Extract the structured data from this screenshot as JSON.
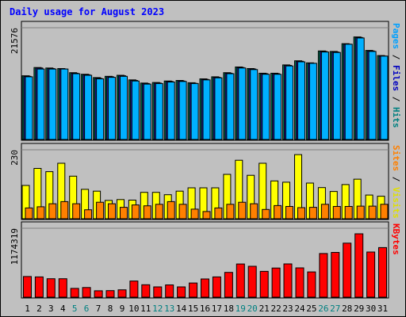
{
  "chart_data": {
    "type": "bar",
    "title": "Daily usage for August 2023",
    "categories": [
      "1",
      "2",
      "3",
      "4",
      "5",
      "6",
      "7",
      "8",
      "9",
      "10",
      "11",
      "12",
      "13",
      "14",
      "15",
      "16",
      "17",
      "18",
      "19",
      "20",
      "21",
      "22",
      "23",
      "24",
      "25",
      "26",
      "27",
      "28",
      "29",
      "30",
      "31"
    ],
    "weekend_days": [
      "5",
      "6",
      "12",
      "13",
      "19",
      "20",
      "26",
      "27"
    ],
    "panels": [
      {
        "id": "hits",
        "top_label": "21576",
        "ylim": [
          0,
          21576
        ],
        "right_labels": [
          {
            "text": "Pages",
            "color": "#00a0ff"
          },
          {
            "text": "Files",
            "color": "#0000c0"
          },
          {
            "text": "Hits",
            "color": "#008080"
          }
        ],
        "series": [
          {
            "name": "Hits",
            "color": "#00805c",
            "values": [
              12300,
              13900,
              13800,
              13700,
              12900,
              12600,
              11950,
              12200,
              12400,
              11500,
              10900,
              11000,
              11300,
              11400,
              10950,
              11700,
              12100,
              12900,
              14000,
              13700,
              12800,
              12800,
              14400,
              15200,
              14800,
              17100,
              17000,
              18500,
              19800,
              17200,
              16200
            ]
          },
          {
            "name": "Files",
            "color": "#2020a0",
            "values": [
              12200,
              13800,
              13700,
              13600,
              12800,
              12500,
              11800,
              12100,
              12300,
              11400,
              10800,
              10900,
              11200,
              11300,
              10850,
              11600,
              12000,
              12800,
              13900,
              13600,
              12700,
              12700,
              14300,
              15100,
              14700,
              17000,
              16900,
              18400,
              19700,
              17100,
              16100
            ]
          },
          {
            "name": "Pages",
            "color": "#00b0ff",
            "values": [
              12100,
              13600,
              13600,
              13600,
              12700,
              12400,
              11700,
              12000,
              12200,
              11300,
              10700,
              10800,
              11100,
              11200,
              10800,
              11500,
              11900,
              12700,
              13800,
              13500,
              12600,
              12600,
              14200,
              15000,
              14700,
              16900,
              16800,
              18400,
              19600,
              17000,
              16100
            ]
          }
        ]
      },
      {
        "id": "visits",
        "top_label": "230",
        "ylim": [
          0,
          230
        ],
        "right_labels": [
          {
            "text": "Sites",
            "color": "#ff8000"
          },
          {
            "text": "Visits",
            "color": "#e0e000"
          }
        ],
        "series": [
          {
            "name": "Visits",
            "color": "#ffff00",
            "values": [
              111,
              168,
              157,
              185,
              142,
              98,
              92,
              61,
              64,
              62,
              88,
              88,
              80,
              92,
              103,
              103,
              103,
              148,
              195,
              145,
              185,
              126,
              122,
              214,
              119,
              104,
              91,
              114,
              132,
              79,
              75
            ]
          },
          {
            "name": "Sites",
            "color": "#ff8000",
            "values": [
              36,
              40,
              50,
              57,
              50,
              30,
              55,
              50,
              38,
              46,
              43,
              48,
              57,
              48,
              32,
              24,
              36,
              48,
              55,
              50,
              31,
              44,
              41,
              37,
              38,
              48,
              41,
              41,
              42,
              42,
              48
            ]
          }
        ]
      },
      {
        "id": "kbytes",
        "top_label": "1174319",
        "ylim": [
          0,
          1174319
        ],
        "right_labels": [
          {
            "text": "KBytes",
            "color": "#ff0000"
          }
        ],
        "series": [
          {
            "name": "KBytes",
            "color": "#ff0000",
            "values": [
              352000,
              345000,
              315000,
              315000,
              150000,
              165000,
              110000,
              112000,
              125000,
              275000,
              212000,
              175000,
              209000,
              175000,
              242000,
              310000,
              345000,
              422000,
              565000,
              527000,
              440000,
              497000,
              567000,
              500000,
              431000,
              744000,
              763000,
              920000,
              1080000,
              770000,
              845000
            ]
          }
        ]
      }
    ]
  },
  "colors": {
    "background": "#c0c0c0",
    "title": "#0000ff",
    "axis_label": "#000000",
    "day_label": "#000000",
    "weekend_day_label": "#008080"
  }
}
